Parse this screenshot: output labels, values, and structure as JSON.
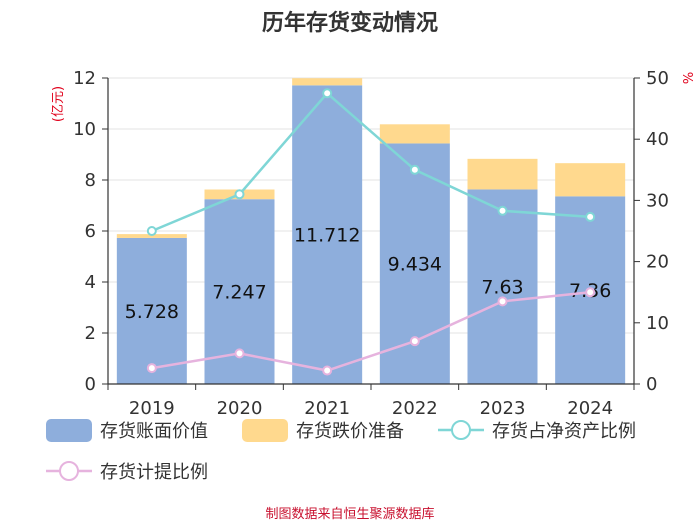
{
  "chart_data": {
    "type": "bar",
    "title": "历年存货变动情况",
    "categories": [
      "2019",
      "2020",
      "2021",
      "2022",
      "2023",
      "2024"
    ],
    "series": [
      {
        "name": "存货账面价值",
        "type": "bar",
        "axis": "left",
        "stack": "inventory",
        "color": "#8eaedc",
        "values": [
          5.728,
          7.247,
          11.712,
          9.434,
          7.63,
          7.36
        ],
        "labels": [
          "5.728",
          "7.247",
          "11.712",
          "9.434",
          "7.63",
          "7.36"
        ]
      },
      {
        "name": "存货跌价准备",
        "type": "bar",
        "axis": "left",
        "stack": "inventory",
        "color": "#ffd98e",
        "values": [
          0.15,
          0.38,
          0.28,
          0.75,
          1.2,
          1.3
        ]
      },
      {
        "name": "存货占净资产比例",
        "type": "line",
        "axis": "right",
        "color": "#7fd6d6",
        "values": [
          25,
          31,
          47.5,
          35,
          28.3,
          27.3
        ]
      },
      {
        "name": "存货计提比例",
        "type": "line",
        "axis": "right",
        "color": "#e6b3de",
        "values": [
          2.6,
          5,
          2.2,
          7,
          13.5,
          15
        ]
      }
    ],
    "y_left": {
      "unit": "(亿元)",
      "range": [
        0,
        12
      ],
      "ticks": [
        0,
        2,
        4,
        6,
        8,
        10,
        12
      ]
    },
    "y_right": {
      "unit": "%",
      "range": [
        0,
        50
      ],
      "ticks": [
        0,
        10,
        20,
        30,
        40,
        50
      ]
    },
    "grid": true,
    "legend_position": "bottom"
  },
  "footer": "制图数据来自恒生聚源数据库"
}
